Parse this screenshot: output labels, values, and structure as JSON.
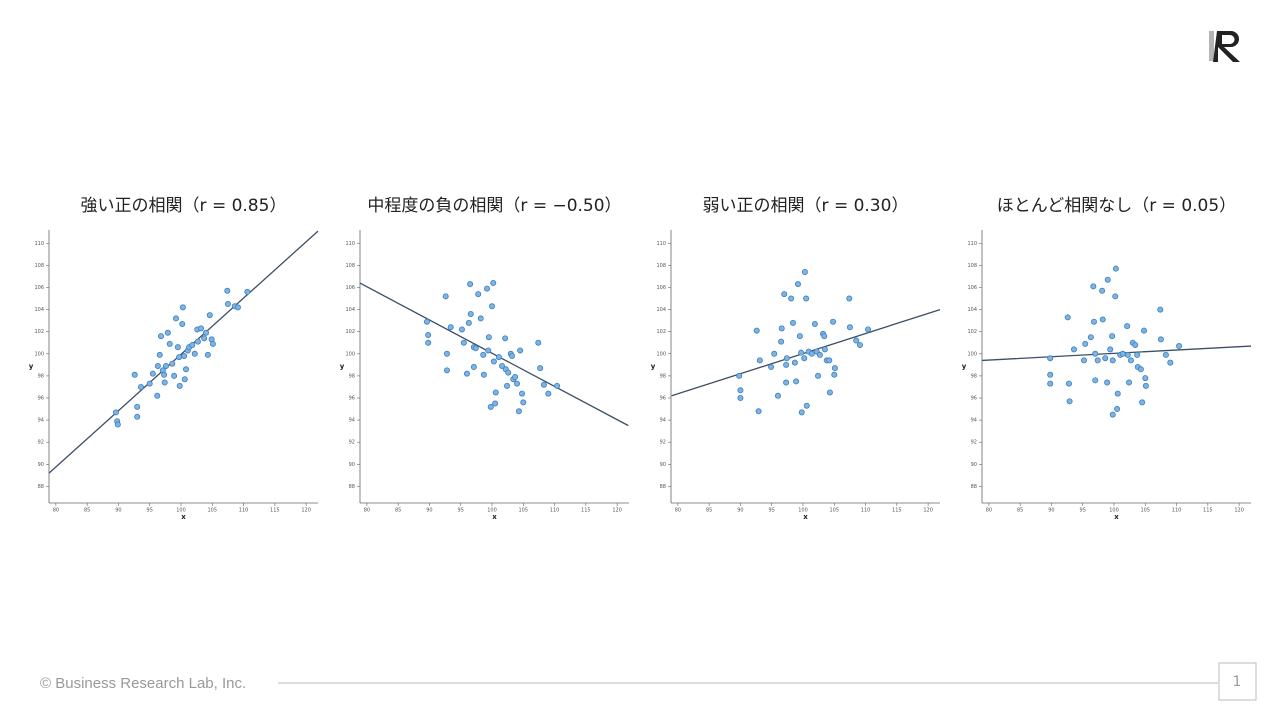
{
  "chart_data": [
    {
      "type": "scatter",
      "title": "強い正の相関（r = 0.85）",
      "x_label": "x",
      "y_label": "y",
      "color": "#7fb3e0",
      "edge_color": "#3a7fc4",
      "line_color": "#3b4f66",
      "xlim": [
        78.9,
        121.9
      ],
      "ylim": [
        86.5,
        111.2
      ],
      "xticks": [
        80,
        85,
        90,
        95,
        100,
        105,
        110,
        115,
        120
      ],
      "yticks": [
        88,
        90,
        92,
        94,
        96,
        98,
        100,
        102,
        104,
        106,
        108,
        110
      ],
      "x": [
        89.6,
        89.8,
        89.9,
        92.6,
        93.0,
        93.0,
        93.6,
        95.0,
        95.5,
        96.2,
        96.3,
        96.6,
        96.8,
        97.1,
        97.3,
        97.4,
        97.6,
        97.9,
        98.2,
        98.6,
        98.9,
        99.2,
        99.5,
        99.7,
        99.8,
        100.2,
        100.3,
        100.5,
        100.6,
        100.8,
        101.1,
        101.3,
        101.8,
        102.2,
        102.6,
        102.7,
        103.2,
        103.7,
        104.0,
        104.3,
        104.6,
        104.9,
        105.1,
        107.4,
        107.5,
        108.6,
        109.1,
        110.6
      ],
      "values": [
        94.7,
        93.9,
        93.6,
        98.1,
        95.2,
        94.3,
        97.0,
        97.3,
        98.2,
        96.2,
        98.9,
        99.9,
        101.6,
        98.5,
        98.1,
        97.4,
        98.9,
        101.9,
        100.9,
        99.1,
        98.0,
        103.2,
        100.6,
        99.7,
        97.1,
        102.7,
        104.2,
        99.8,
        97.7,
        98.6,
        100.3,
        100.6,
        100.8,
        100.0,
        102.2,
        101.1,
        102.3,
        101.4,
        101.9,
        99.9,
        103.5,
        101.3,
        100.9,
        105.7,
        104.5,
        104.3,
        104.2,
        105.6
      ],
      "trend_line": {
        "x": [
          78.9,
          121.9
        ],
        "values": [
          89.2,
          111.1
        ]
      }
    },
    {
      "type": "scatter",
      "title": "中程度の負の相関（r = −0.50）",
      "x_label": "x",
      "y_label": "y",
      "color": "#7fb3e0",
      "edge_color": "#3a7fc4",
      "line_color": "#3b4f66",
      "xlim": [
        78.9,
        121.9
      ],
      "ylim": [
        86.5,
        111.2
      ],
      "xticks": [
        80,
        85,
        90,
        95,
        100,
        105,
        110,
        115,
        120
      ],
      "yticks": [
        88,
        90,
        92,
        94,
        96,
        98,
        100,
        102,
        104,
        106,
        108,
        110
      ],
      "x": [
        89.6,
        89.8,
        89.8,
        92.6,
        92.8,
        92.8,
        93.4,
        95.2,
        95.5,
        96.0,
        96.3,
        96.5,
        96.6,
        97.1,
        97.1,
        97.4,
        97.8,
        98.2,
        98.6,
        98.7,
        99.2,
        99.4,
        99.5,
        99.8,
        100.0,
        100.2,
        100.3,
        100.5,
        100.6,
        101.1,
        101.6,
        102.1,
        102.2,
        102.4,
        102.6,
        103.0,
        103.2,
        103.4,
        103.7,
        104.0,
        104.3,
        104.5,
        104.8,
        105.0,
        107.4,
        107.7,
        108.3,
        109.0,
        110.4
      ],
      "values": [
        102.9,
        101.7,
        101.0,
        105.2,
        100.0,
        98.5,
        102.4,
        102.2,
        101.0,
        98.2,
        102.8,
        106.3,
        103.6,
        100.6,
        98.8,
        100.5,
        105.4,
        103.2,
        99.9,
        98.1,
        105.9,
        100.3,
        101.5,
        95.2,
        104.3,
        106.4,
        99.3,
        95.5,
        96.5,
        99.7,
        98.9,
        101.4,
        98.6,
        97.1,
        98.3,
        100.0,
        99.8,
        97.7,
        97.9,
        97.3,
        94.8,
        100.3,
        96.4,
        95.6,
        101.0,
        98.7,
        97.2,
        96.4,
        97.1
      ],
      "trend_line": {
        "x": [
          78.9,
          121.8
        ],
        "values": [
          106.4,
          93.5
        ]
      }
    },
    {
      "type": "scatter",
      "title": "弱い正の相関（r = 0.30）",
      "x_label": "x",
      "y_label": "y",
      "color": "#7fb3e0",
      "edge_color": "#3a7fc4",
      "line_color": "#3b4f66",
      "xlim": [
        78.9,
        121.9
      ],
      "ylim": [
        86.5,
        111.2
      ],
      "xticks": [
        80,
        85,
        90,
        95,
        100,
        105,
        110,
        115,
        120
      ],
      "yticks": [
        88,
        90,
        92,
        94,
        96,
        98,
        100,
        102,
        104,
        106,
        108,
        110
      ],
      "x": [
        89.8,
        90.0,
        90.0,
        92.6,
        92.9,
        93.1,
        94.9,
        95.4,
        96.0,
        96.5,
        96.6,
        97.0,
        97.3,
        97.3,
        97.4,
        98.1,
        98.4,
        98.7,
        98.9,
        99.2,
        99.5,
        99.7,
        99.8,
        100.2,
        100.3,
        100.5,
        100.6,
        100.9,
        101.4,
        101.9,
        102.2,
        102.4,
        102.7,
        103.2,
        103.4,
        103.5,
        103.8,
        104.2,
        104.3,
        104.8,
        105.0,
        105.1,
        107.4,
        107.5,
        108.5,
        109.1,
        110.4
      ],
      "values": [
        98.0,
        96.0,
        96.7,
        102.1,
        94.8,
        99.4,
        98.8,
        100.0,
        96.2,
        101.1,
        102.3,
        105.4,
        97.4,
        99.0,
        99.6,
        105.0,
        102.8,
        99.2,
        97.5,
        106.3,
        101.6,
        100.1,
        94.7,
        99.6,
        107.4,
        105.0,
        95.3,
        100.2,
        100.0,
        102.7,
        100.2,
        98.0,
        99.9,
        101.8,
        101.6,
        100.4,
        99.4,
        99.4,
        96.5,
        102.9,
        98.1,
        98.7,
        105.0,
        102.4,
        101.2,
        100.8,
        102.2
      ],
      "trend_line": {
        "x": [
          79.0,
          121.9
        ],
        "values": [
          96.2,
          104.0
        ]
      }
    },
    {
      "type": "scatter",
      "title": "ほとんど相関なし（r = 0.05）",
      "x_label": "x",
      "y_label": "y",
      "color": "#7fb3e0",
      "edge_color": "#3a7fc4",
      "line_color": "#3b4f66",
      "xlim": [
        78.9,
        121.9
      ],
      "ylim": [
        86.5,
        111.2
      ],
      "xticks": [
        80,
        85,
        90,
        95,
        100,
        105,
        110,
        115,
        120
      ],
      "yticks": [
        88,
        90,
        92,
        94,
        96,
        98,
        100,
        102,
        104,
        106,
        108,
        110
      ],
      "x": [
        89.8,
        89.8,
        89.8,
        92.6,
        92.8,
        92.9,
        93.6,
        95.2,
        95.4,
        96.3,
        96.7,
        96.8,
        97.0,
        97.0,
        97.4,
        98.1,
        98.2,
        98.6,
        98.9,
        99.0,
        99.4,
        99.7,
        99.8,
        99.8,
        100.2,
        100.3,
        100.5,
        100.6,
        101.0,
        101.4,
        102.1,
        102.2,
        102.4,
        102.7,
        103.0,
        103.4,
        103.7,
        103.8,
        104.3,
        104.5,
        104.8,
        105.0,
        105.1,
        107.4,
        107.5,
        108.3,
        109.0,
        110.4
      ],
      "values": [
        99.6,
        98.1,
        97.3,
        103.3,
        97.3,
        95.7,
        100.4,
        99.4,
        100.9,
        101.5,
        106.1,
        102.9,
        97.6,
        100.0,
        99.4,
        105.7,
        103.1,
        99.6,
        97.4,
        106.7,
        100.4,
        101.6,
        99.4,
        94.5,
        105.2,
        107.7,
        95.0,
        96.4,
        99.9,
        100.0,
        102.5,
        99.9,
        97.4,
        99.4,
        101.0,
        100.8,
        99.9,
        98.8,
        98.6,
        95.6,
        102.1,
        97.8,
        97.1,
        104.0,
        101.3,
        99.9,
        99.2,
        100.7
      ],
      "trend_line": {
        "x": [
          78.9,
          121.9
        ],
        "values": [
          99.4,
          100.7
        ]
      }
    }
  ],
  "footer": {
    "copyright": "© Business Research Lab, Inc.",
    "page": "1"
  }
}
